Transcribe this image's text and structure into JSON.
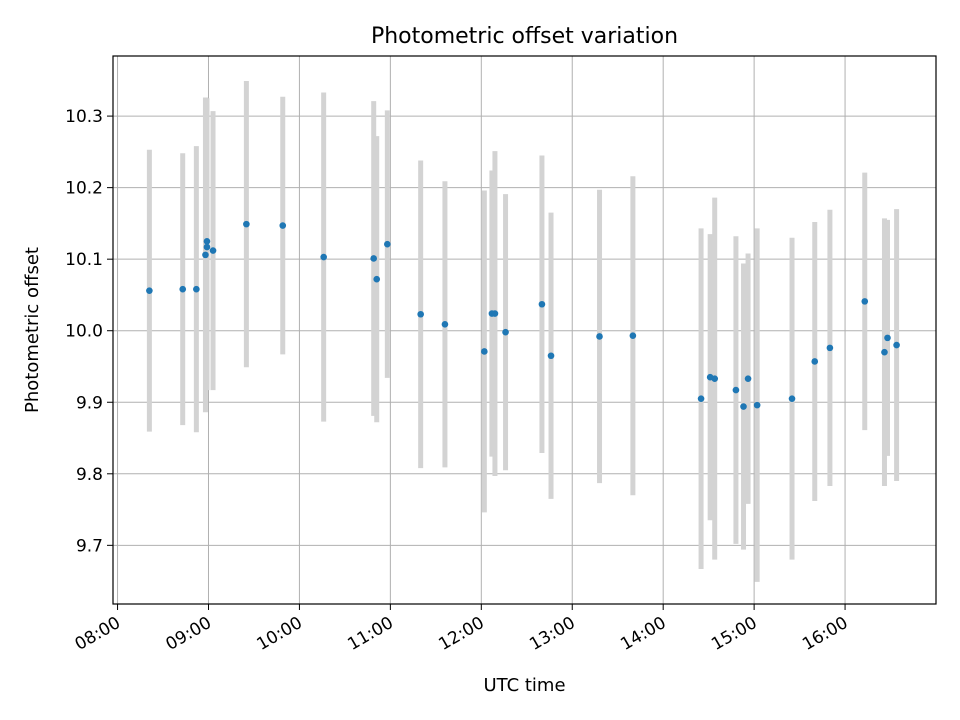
{
  "chart_data": {
    "type": "scatter",
    "title": "Photometric offset variation",
    "xlabel": "UTC time",
    "ylabel": "Photometric offset",
    "x_ticks": [
      "08:00",
      "09:00",
      "10:00",
      "11:00",
      "12:00",
      "13:00",
      "14:00",
      "15:00",
      "16:00"
    ],
    "y_ticks": [
      "9.7",
      "9.8",
      "9.9",
      "10.0",
      "10.1",
      "10.2",
      "10.3"
    ],
    "xlim": [
      "07:57",
      "17:00"
    ],
    "ylim": [
      9.618,
      10.384
    ],
    "grid": true,
    "point_color": "#1f77b4",
    "errorbar_color": "#d3d3d3",
    "points": [
      {
        "t": "08:21",
        "y": 10.056,
        "err": 0.197
      },
      {
        "t": "08:43",
        "y": 10.058,
        "err": 0.19
      },
      {
        "t": "08:52",
        "y": 10.058,
        "err": 0.2
      },
      {
        "t": "08:58",
        "y": 10.106,
        "err": 0.22
      },
      {
        "t": "08:59",
        "y": 10.117,
        "err": 0.2
      },
      {
        "t": "08:59",
        "y": 10.125,
        "err": 0.2
      },
      {
        "t": "09:03",
        "y": 10.112,
        "err": 0.195
      },
      {
        "t": "09:25",
        "y": 10.149,
        "err": 0.2
      },
      {
        "t": "09:49",
        "y": 10.147,
        "err": 0.18
      },
      {
        "t": "10:16",
        "y": 10.103,
        "err": 0.23
      },
      {
        "t": "10:49",
        "y": 10.101,
        "err": 0.22
      },
      {
        "t": "10:51",
        "y": 10.072,
        "err": 0.2
      },
      {
        "t": "10:58",
        "y": 10.121,
        "err": 0.187
      },
      {
        "t": "11:20",
        "y": 10.023,
        "err": 0.215
      },
      {
        "t": "11:36",
        "y": 10.009,
        "err": 0.2
      },
      {
        "t": "12:02",
        "y": 9.971,
        "err": 0.225
      },
      {
        "t": "12:07",
        "y": 10.024,
        "err": 0.2
      },
      {
        "t": "12:09",
        "y": 10.024,
        "err": 0.227
      },
      {
        "t": "12:16",
        "y": 9.998,
        "err": 0.193
      },
      {
        "t": "12:40",
        "y": 10.037,
        "err": 0.208
      },
      {
        "t": "12:46",
        "y": 9.965,
        "err": 0.2
      },
      {
        "t": "13:18",
        "y": 9.992,
        "err": 0.205
      },
      {
        "t": "13:40",
        "y": 9.993,
        "err": 0.223
      },
      {
        "t": "14:25",
        "y": 9.905,
        "err": 0.238
      },
      {
        "t": "14:31",
        "y": 9.935,
        "err": 0.2
      },
      {
        "t": "14:34",
        "y": 9.933,
        "err": 0.253
      },
      {
        "t": "14:48",
        "y": 9.917,
        "err": 0.215
      },
      {
        "t": "14:53",
        "y": 9.894,
        "err": 0.2
      },
      {
        "t": "14:56",
        "y": 9.933,
        "err": 0.175
      },
      {
        "t": "15:02",
        "y": 9.896,
        "err": 0.247
      },
      {
        "t": "15:25",
        "y": 9.905,
        "err": 0.225
      },
      {
        "t": "15:40",
        "y": 9.957,
        "err": 0.195
      },
      {
        "t": "15:50",
        "y": 9.976,
        "err": 0.193
      },
      {
        "t": "16:13",
        "y": 10.041,
        "err": 0.18
      },
      {
        "t": "16:26",
        "y": 9.97,
        "err": 0.187
      },
      {
        "t": "16:28",
        "y": 9.99,
        "err": 0.165
      },
      {
        "t": "16:34",
        "y": 9.98,
        "err": 0.19
      }
    ]
  }
}
